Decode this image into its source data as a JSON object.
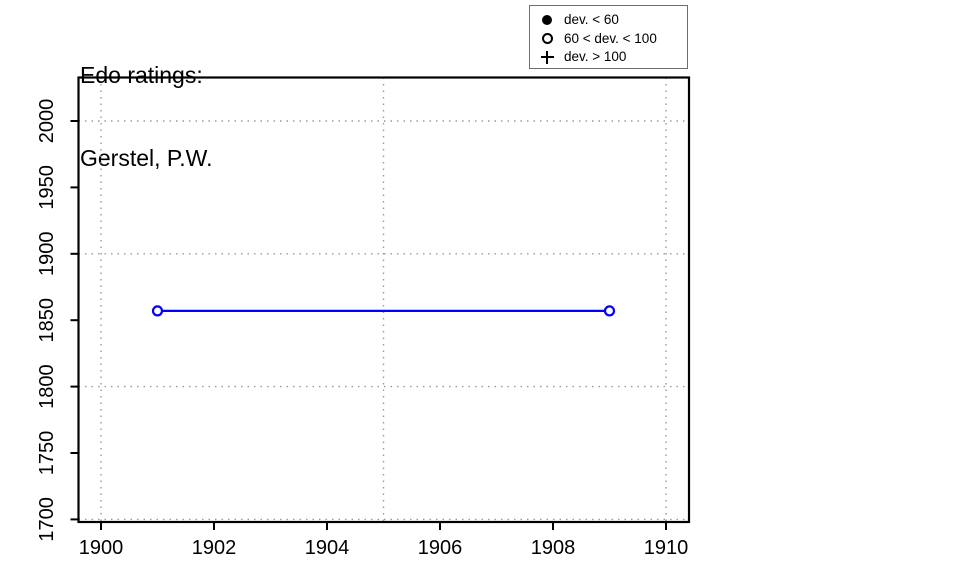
{
  "chart": {
    "title_line1": "Edo ratings:",
    "title_line2": "Gerstel, P.W.",
    "legend": {
      "items": [
        {
          "marker": "filled-circle-icon",
          "label": "dev. < 60"
        },
        {
          "marker": "open-circle-icon",
          "label": "60 < dev. < 100"
        },
        {
          "marker": "plus-icon",
          "label": "dev. > 100"
        }
      ]
    }
  },
  "chart_data": {
    "type": "line",
    "title": "Edo ratings: Gerstel, P.W.",
    "xlabel": "",
    "ylabel": "",
    "x": [
      1901,
      1909
    ],
    "series": [
      {
        "name": "Edo rating",
        "values": [
          1857,
          1857
        ],
        "marker": "open-circle",
        "marker_meaning": "60 < dev. < 100",
        "color": "#0000ff"
      }
    ],
    "x_ticks": [
      1900,
      1902,
      1904,
      1906,
      1908,
      1910
    ],
    "y_ticks": [
      1700,
      1750,
      1800,
      1850,
      1900,
      1950,
      2000
    ],
    "grid_x": [
      1900,
      1905,
      1910
    ],
    "grid_y": [
      1700,
      1800,
      1900,
      2000
    ],
    "xlim": [
      1899.6,
      1910.35
    ],
    "ylim": [
      1698,
      2029
    ],
    "grid": true,
    "legend_position": "top-right",
    "colors": {
      "line": "#0000ff",
      "grid": "#999999",
      "axis": "#000000",
      "text": "#000000"
    }
  }
}
